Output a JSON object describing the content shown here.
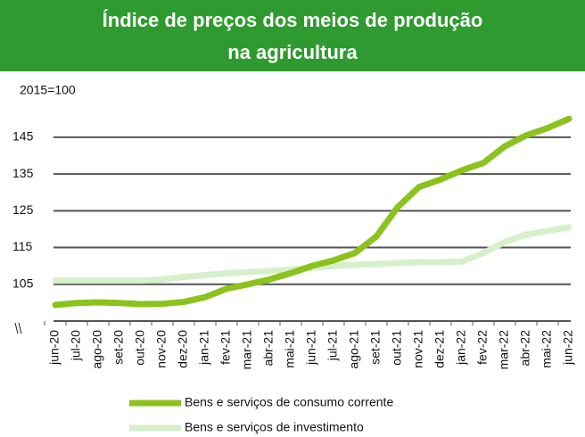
{
  "chart_data": {
    "type": "line",
    "title_lines": [
      "Índice de preços dos meios de produção",
      "na agricultura"
    ],
    "subtitle": "2015=100",
    "categories": [
      "jun-20",
      "jul-20",
      "ago-20",
      "set-20",
      "out-20",
      "nov-20",
      "dez-20",
      "jan-21",
      "fev-21",
      "mar-21",
      "abr-21",
      "mai-21",
      "jun-21",
      "jul-21",
      "ago-21",
      "set-21",
      "out-21",
      "nov-21",
      "dez-21",
      "jan-22",
      "fev-22",
      "mar-22",
      "abr-22",
      "mai-22",
      "jun-22"
    ],
    "series": [
      {
        "name": "Bens e serviços de consumo corrente",
        "color": "#8cc21e",
        "values": [
          99.4,
          99.9,
          100.1,
          99.9,
          99.6,
          99.7,
          100.2,
          101.5,
          103.8,
          105,
          106.3,
          108,
          110,
          111.5,
          113.5,
          118,
          126,
          131.5,
          133.5,
          136,
          138,
          142.5,
          145.5,
          147.5,
          150
        ]
      },
      {
        "name": "Bens e serviços de investimento",
        "color": "#d6f0cb",
        "values": [
          106,
          106,
          106,
          106,
          106,
          106.3,
          107,
          107.5,
          108,
          108.3,
          108.6,
          109,
          109.5,
          110,
          110.3,
          110.5,
          110.8,
          111,
          111,
          111.2,
          113.5,
          116.5,
          118.5,
          119.5,
          120.5
        ]
      }
    ],
    "ylim": [
      95,
      152
    ],
    "yticks": [
      105,
      115,
      125,
      135,
      145
    ],
    "grid": true
  }
}
